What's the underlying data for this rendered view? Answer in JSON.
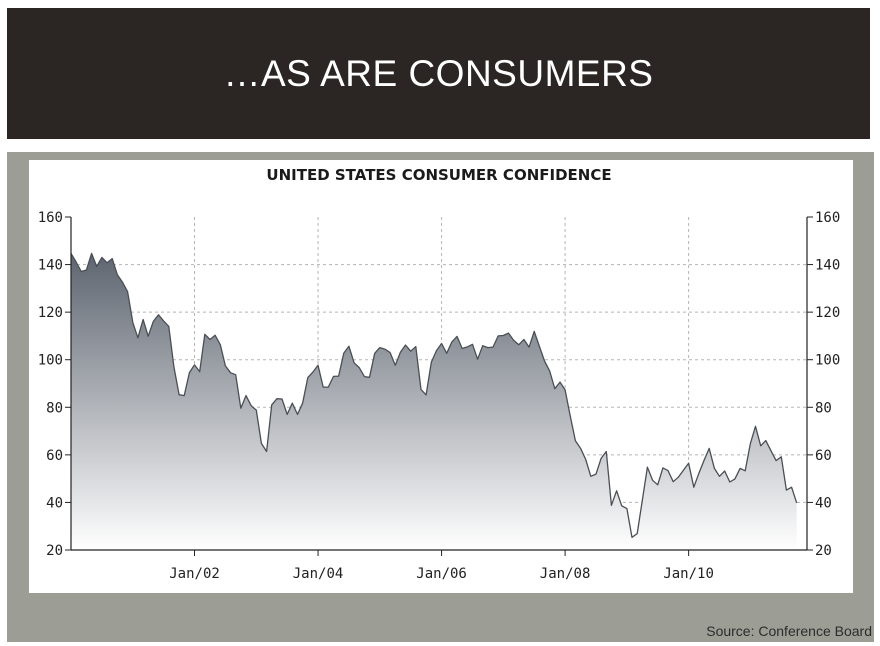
{
  "slide": {
    "title": "…AS ARE CONSUMERS",
    "source": "Source: Conference Board"
  },
  "colors": {
    "banner": "#2b2624",
    "panel": "#9c9d95",
    "line": "#4a4f55",
    "fill_top": "#5e6570",
    "fill_bottom": "#ffffff"
  },
  "chart_data": {
    "type": "area",
    "title": "UNITED STATES CONSUMER CONFIDENCE",
    "xlabel": "",
    "ylabel": "",
    "ylim": [
      20,
      160
    ],
    "yticks": [
      20,
      40,
      60,
      80,
      100,
      120,
      140,
      160
    ],
    "xlim": [
      "2000-01",
      "2011-12"
    ],
    "xticks": [
      {
        "date": "2002-01",
        "label": "Jan/02"
      },
      {
        "date": "2004-01",
        "label": "Jan/04"
      },
      {
        "date": "2006-01",
        "label": "Jan/06"
      },
      {
        "date": "2008-01",
        "label": "Jan/08"
      },
      {
        "date": "2010-01",
        "label": "Jan/10"
      }
    ],
    "grid": true,
    "right_axis": true,
    "series": [
      {
        "points": [
          [
            "2000-01",
            144.7
          ],
          [
            "2000-02",
            141.1
          ],
          [
            "2000-03",
            137.1
          ],
          [
            "2000-04",
            137.7
          ],
          [
            "2000-05",
            144.7
          ],
          [
            "2000-06",
            139.2
          ],
          [
            "2000-07",
            143.0
          ],
          [
            "2000-08",
            140.8
          ],
          [
            "2000-09",
            142.5
          ],
          [
            "2000-10",
            135.8
          ],
          [
            "2000-11",
            132.6
          ],
          [
            "2000-12",
            128.6
          ],
          [
            "2001-01",
            115.7
          ],
          [
            "2001-02",
            109.2
          ],
          [
            "2001-03",
            116.9
          ],
          [
            "2001-04",
            109.9
          ],
          [
            "2001-05",
            116.1
          ],
          [
            "2001-06",
            118.9
          ],
          [
            "2001-07",
            116.3
          ],
          [
            "2001-08",
            114.0
          ],
          [
            "2001-09",
            97.0
          ],
          [
            "2001-10",
            85.3
          ],
          [
            "2001-11",
            84.9
          ],
          [
            "2001-12",
            94.6
          ],
          [
            "2002-01",
            97.8
          ],
          [
            "2002-02",
            95.0
          ],
          [
            "2002-03",
            110.7
          ],
          [
            "2002-04",
            108.5
          ],
          [
            "2002-05",
            110.3
          ],
          [
            "2002-06",
            106.3
          ],
          [
            "2002-07",
            97.4
          ],
          [
            "2002-08",
            94.5
          ],
          [
            "2002-09",
            93.7
          ],
          [
            "2002-10",
            79.6
          ],
          [
            "2002-11",
            84.9
          ],
          [
            "2002-12",
            80.7
          ],
          [
            "2003-01",
            78.8
          ],
          [
            "2003-02",
            64.8
          ],
          [
            "2003-03",
            61.4
          ],
          [
            "2003-04",
            81.0
          ],
          [
            "2003-05",
            83.6
          ],
          [
            "2003-06",
            83.5
          ],
          [
            "2003-07",
            77.0
          ],
          [
            "2003-08",
            81.7
          ],
          [
            "2003-09",
            77.0
          ],
          [
            "2003-10",
            81.7
          ],
          [
            "2003-11",
            92.5
          ],
          [
            "2003-12",
            94.8
          ],
          [
            "2004-01",
            97.7
          ],
          [
            "2004-02",
            88.5
          ],
          [
            "2004-03",
            88.5
          ],
          [
            "2004-04",
            93.0
          ],
          [
            "2004-05",
            93.1
          ],
          [
            "2004-06",
            102.8
          ],
          [
            "2004-07",
            105.7
          ],
          [
            "2004-08",
            98.7
          ],
          [
            "2004-09",
            96.7
          ],
          [
            "2004-10",
            92.9
          ],
          [
            "2004-11",
            92.6
          ],
          [
            "2004-12",
            102.7
          ],
          [
            "2005-01",
            105.1
          ],
          [
            "2005-02",
            104.4
          ],
          [
            "2005-03",
            103.0
          ],
          [
            "2005-04",
            97.7
          ],
          [
            "2005-05",
            103.1
          ],
          [
            "2005-06",
            106.2
          ],
          [
            "2005-07",
            103.6
          ],
          [
            "2005-08",
            105.5
          ],
          [
            "2005-09",
            87.5
          ],
          [
            "2005-10",
            85.2
          ],
          [
            "2005-11",
            98.9
          ],
          [
            "2005-12",
            103.8
          ],
          [
            "2006-01",
            106.8
          ],
          [
            "2006-02",
            102.7
          ],
          [
            "2006-03",
            107.5
          ],
          [
            "2006-04",
            109.8
          ],
          [
            "2006-05",
            104.7
          ],
          [
            "2006-06",
            105.4
          ],
          [
            "2006-07",
            106.5
          ],
          [
            "2006-08",
            100.2
          ],
          [
            "2006-09",
            105.9
          ],
          [
            "2006-10",
            105.1
          ],
          [
            "2006-11",
            105.3
          ],
          [
            "2006-12",
            110.0
          ],
          [
            "2007-01",
            110.2
          ],
          [
            "2007-02",
            111.2
          ],
          [
            "2007-03",
            108.2
          ],
          [
            "2007-04",
            106.3
          ],
          [
            "2007-05",
            108.5
          ],
          [
            "2007-06",
            105.3
          ],
          [
            "2007-07",
            111.9
          ],
          [
            "2007-08",
            105.6
          ],
          [
            "2007-09",
            99.5
          ],
          [
            "2007-10",
            95.2
          ],
          [
            "2007-11",
            87.8
          ],
          [
            "2007-12",
            90.6
          ],
          [
            "2008-01",
            87.3
          ],
          [
            "2008-02",
            76.4
          ],
          [
            "2008-03",
            65.9
          ],
          [
            "2008-04",
            62.8
          ],
          [
            "2008-05",
            58.1
          ],
          [
            "2008-06",
            51.0
          ],
          [
            "2008-07",
            51.9
          ],
          [
            "2008-08",
            58.5
          ],
          [
            "2008-09",
            61.4
          ],
          [
            "2008-10",
            38.8
          ],
          [
            "2008-11",
            44.9
          ],
          [
            "2008-12",
            38.6
          ],
          [
            "2009-01",
            37.4
          ],
          [
            "2009-02",
            25.3
          ],
          [
            "2009-03",
            26.9
          ],
          [
            "2009-04",
            40.8
          ],
          [
            "2009-05",
            54.8
          ],
          [
            "2009-06",
            49.3
          ],
          [
            "2009-07",
            47.4
          ],
          [
            "2009-08",
            54.5
          ],
          [
            "2009-09",
            53.4
          ],
          [
            "2009-10",
            48.7
          ],
          [
            "2009-11",
            50.6
          ],
          [
            "2009-12",
            53.6
          ],
          [
            "2010-01",
            56.5
          ],
          [
            "2010-02",
            46.4
          ],
          [
            "2010-03",
            52.3
          ],
          [
            "2010-04",
            57.7
          ],
          [
            "2010-05",
            62.7
          ],
          [
            "2010-06",
            54.3
          ],
          [
            "2010-07",
            51.0
          ],
          [
            "2010-08",
            53.2
          ],
          [
            "2010-09",
            48.6
          ],
          [
            "2010-10",
            49.9
          ],
          [
            "2010-11",
            54.3
          ],
          [
            "2010-12",
            53.3
          ],
          [
            "2011-01",
            64.8
          ],
          [
            "2011-02",
            72.0
          ],
          [
            "2011-03",
            63.8
          ],
          [
            "2011-04",
            66.0
          ],
          [
            "2011-05",
            61.7
          ],
          [
            "2011-06",
            57.6
          ],
          [
            "2011-07",
            59.2
          ],
          [
            "2011-08",
            45.2
          ],
          [
            "2011-09",
            46.4
          ],
          [
            "2011-10",
            39.8
          ]
        ]
      }
    ]
  }
}
